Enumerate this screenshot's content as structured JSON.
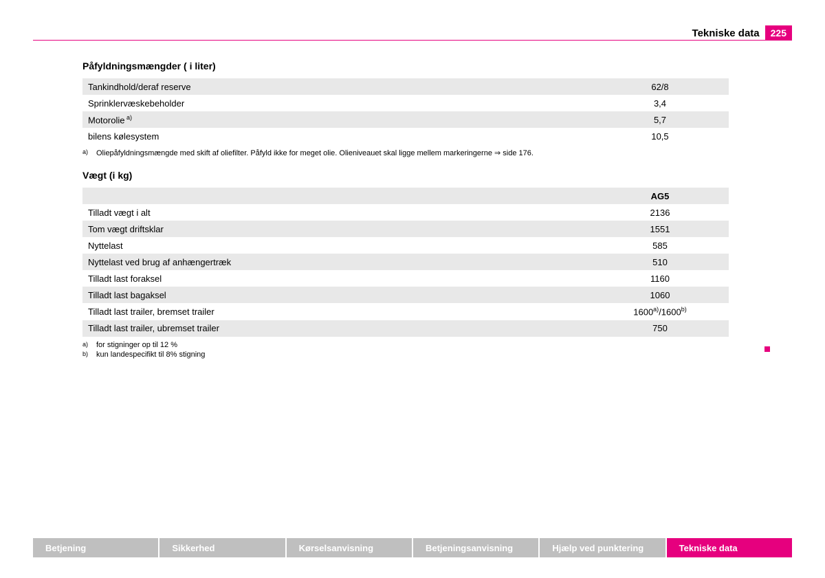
{
  "header": {
    "title": "Tekniske data",
    "page": "225"
  },
  "colors": {
    "accent": "#e6007e",
    "row_alt": "#e8e8e8",
    "footer_inactive": "#bfbfbf",
    "text": "#000000",
    "footer_text": "#ffffff"
  },
  "sections": {
    "fill": {
      "title": "Påfyldningsmængder ( i liter)",
      "rows": [
        {
          "label": "Tankindhold/deraf reserve",
          "value": "62/8",
          "alt": true
        },
        {
          "label": "Sprinklervæskebeholder",
          "value": "3,4",
          "alt": false
        },
        {
          "label": "Motorolie",
          "sup": "a)",
          "value": "5,7",
          "alt": true
        },
        {
          "label": "bilens kølesystem",
          "value": "10,5",
          "alt": false
        }
      ],
      "footnotes": [
        {
          "marker": "a)",
          "text": "Oliepåfyldningsmængde med skift af oliefilter. Påfyld ikke for meget olie. Olieniveauet skal ligge mellem markeringerne ⇒ side 176."
        }
      ]
    },
    "weight": {
      "title": "Vægt (i kg)",
      "column_header": "AG5",
      "rows": [
        {
          "label": "Tilladt vægt i alt",
          "value": "2136",
          "alt": false
        },
        {
          "label": "Tom vægt driftsklar",
          "value": "1551",
          "alt": true
        },
        {
          "label": "Nyttelast",
          "value": "585",
          "alt": false
        },
        {
          "label": "Nyttelast ved brug af anhængertræk",
          "value": "510",
          "alt": true
        },
        {
          "label": "Tilladt last foraksel",
          "value": "1160",
          "alt": false
        },
        {
          "label": "Tilladt last bagaksel",
          "value": "1060",
          "alt": true
        },
        {
          "label": "Tilladt last trailer, bremset trailer",
          "value_html": "1600<sup>a)</sup>/1600<sup>b)</sup>",
          "alt": false
        },
        {
          "label": "Tilladt last trailer, ubremset trailer",
          "value": "750",
          "alt": true
        }
      ],
      "footnotes": [
        {
          "marker": "a)",
          "text": "for stigninger op til 12 %"
        },
        {
          "marker": "b)",
          "text": "kun landespecifikt til 8% stigning"
        }
      ]
    }
  },
  "footer": {
    "tabs": [
      {
        "label": "Betjening",
        "active": false
      },
      {
        "label": "Sikkerhed",
        "active": false
      },
      {
        "label": "Kørselsanvisning",
        "active": false
      },
      {
        "label": "Betjeningsanvisning",
        "active": false
      },
      {
        "label": "Hjælp ved punktering",
        "active": false
      },
      {
        "label": "Tekniske data",
        "active": true
      }
    ]
  }
}
